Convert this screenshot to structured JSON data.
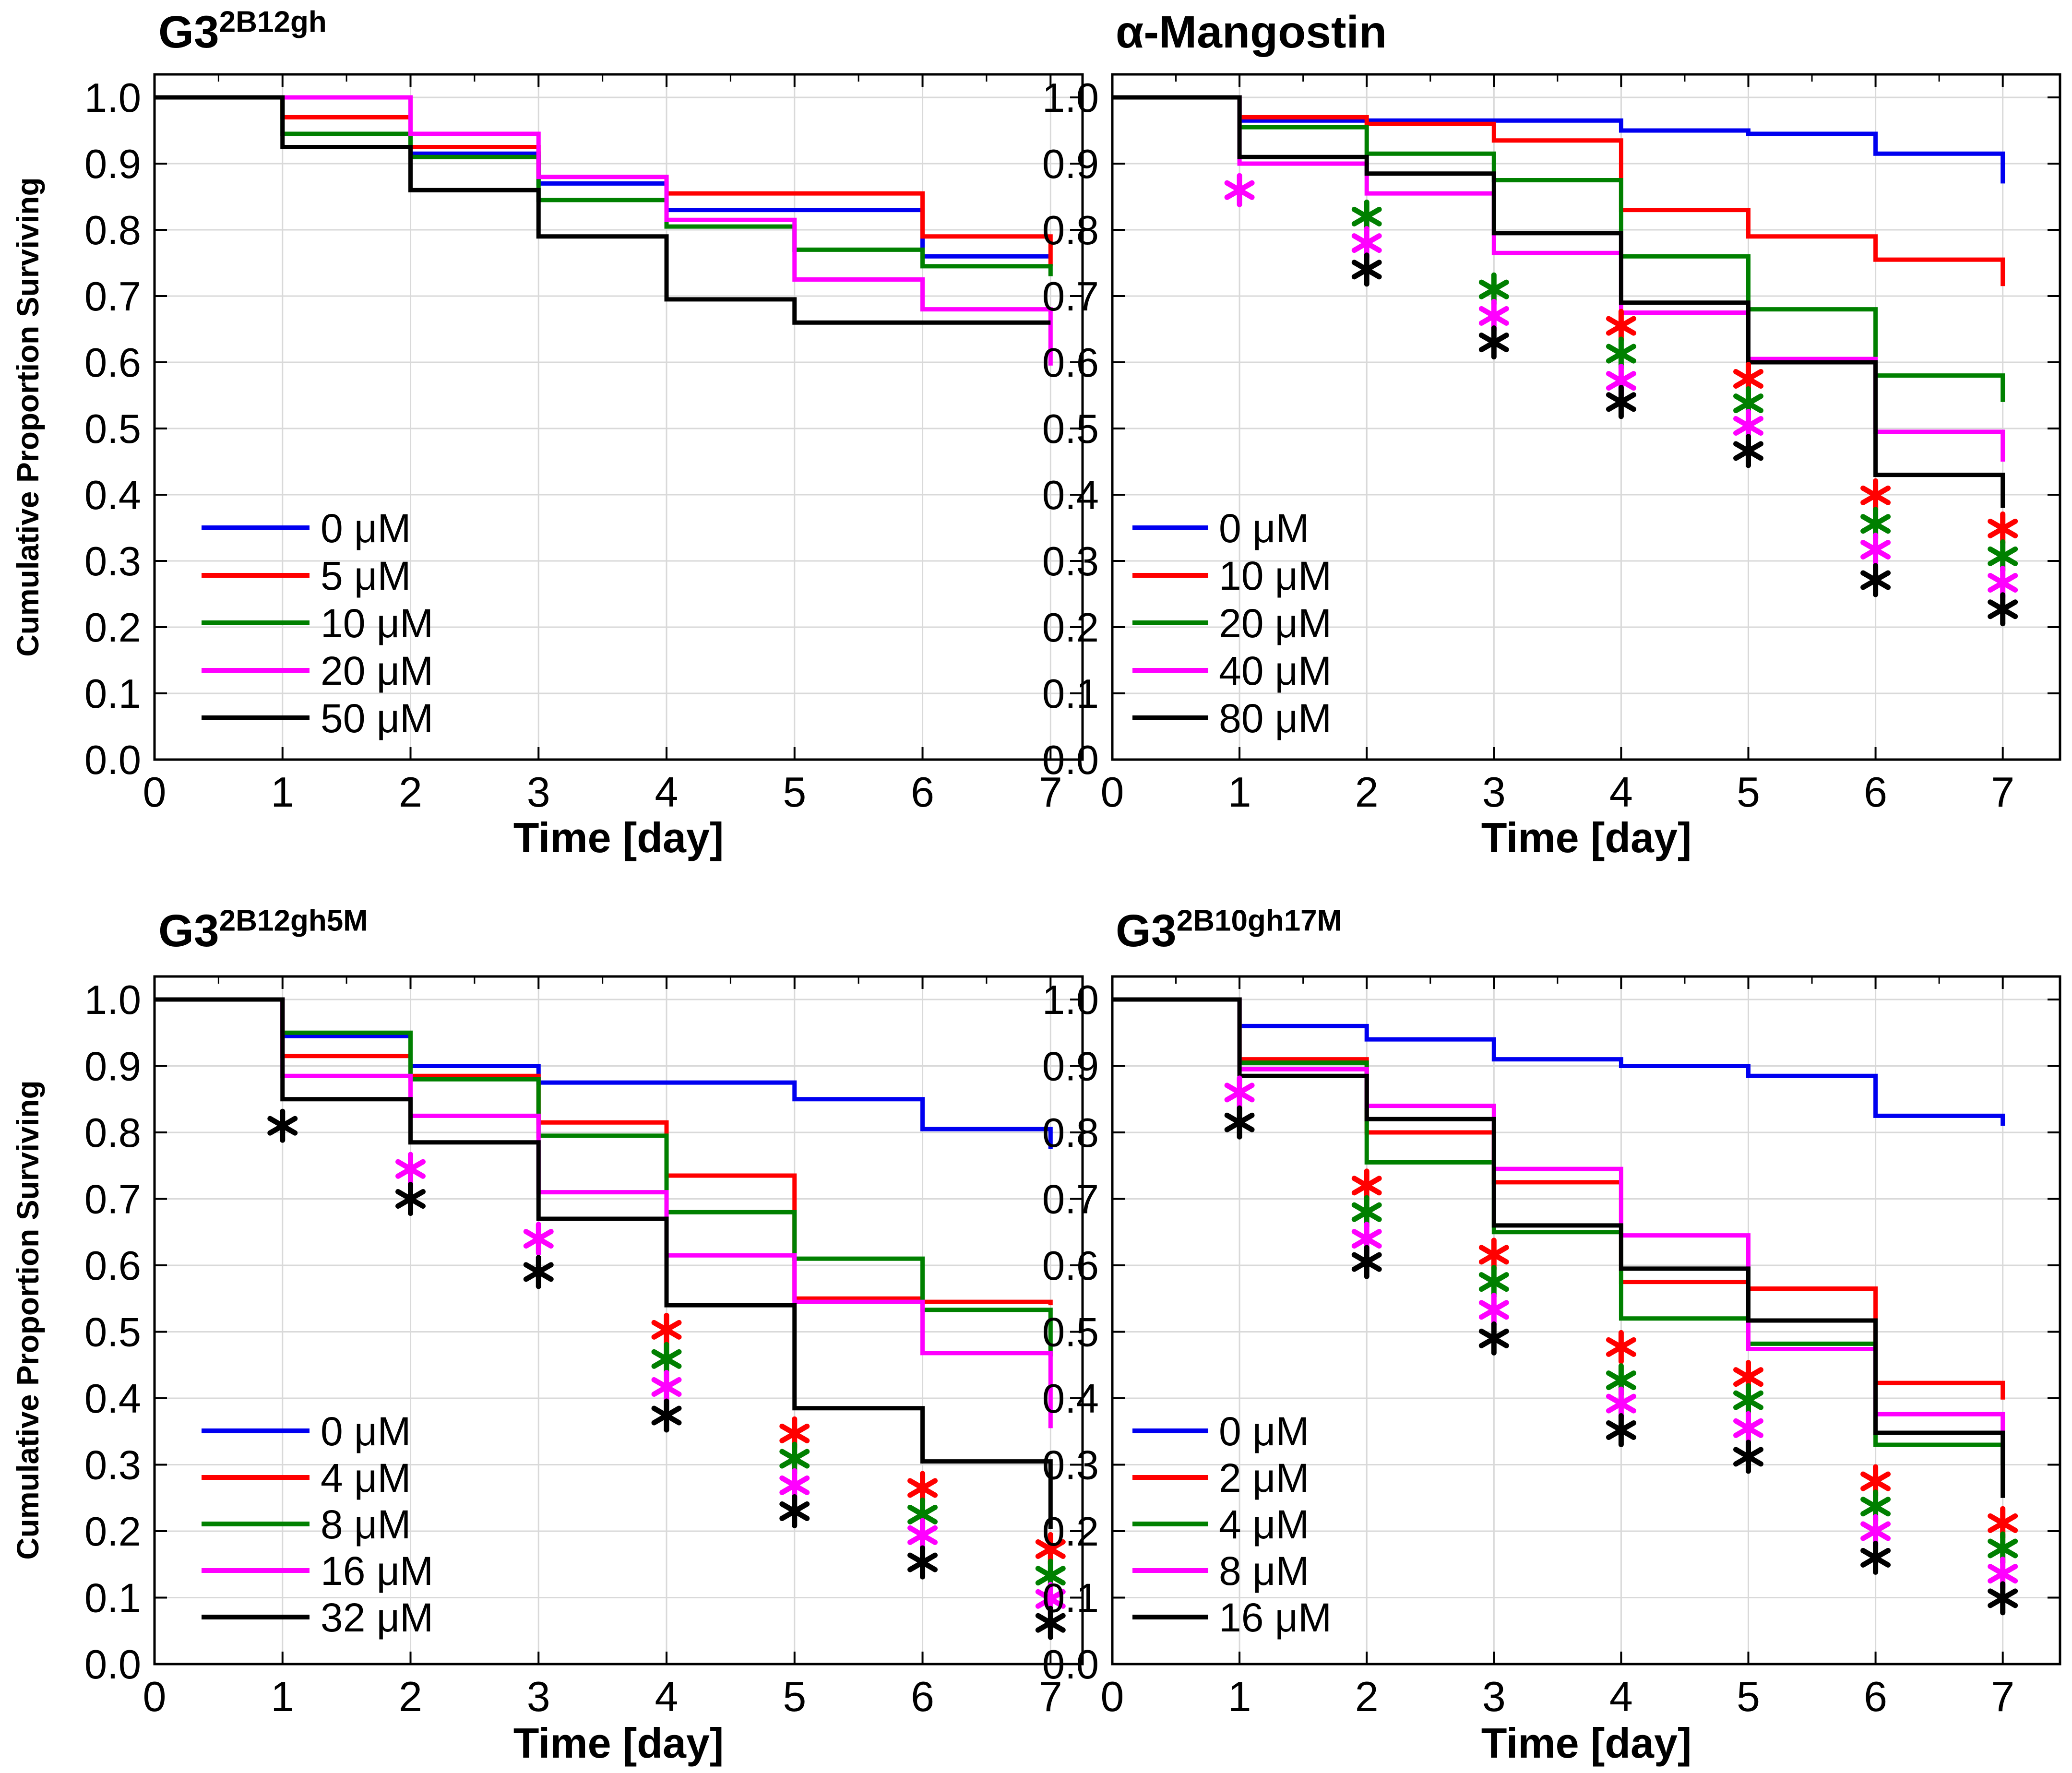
{
  "figure_type": "kaplan_meier_survival_grid",
  "chart_data": {
    "type": "step_survival",
    "grid": "2x2",
    "x_range": [
      0,
      7
    ],
    "y_range": [
      0.0,
      1.0
    ],
    "grid_on": true,
    "panels": [
      {
        "id": "top-left",
        "title": {
          "base": "G3",
          "sup": "2B12gh"
        },
        "xlabel": "Time [day]",
        "ylabel": "Cumulative Proportion Surviving",
        "xticks": [
          "0",
          "1",
          "2",
          "3",
          "4",
          "5",
          "6",
          "7"
        ],
        "yticks": [
          "1.0",
          "0.9",
          "0.8",
          "0.7",
          "0.6",
          "0.5",
          "0.4",
          "0.3",
          "0.2",
          "0.1",
          "0.0"
        ],
        "legend_position": "lower-left",
        "series": [
          {
            "label": "0 μM",
            "color": "blue",
            "steps": [
              1.0,
              1.0,
              0.915,
              0.87,
              0.83,
              0.83,
              0.76
            ],
            "final": 0.76
          },
          {
            "label": "5 μM",
            "color": "red",
            "steps": [
              1.0,
              0.97,
              0.925,
              0.88,
              0.855,
              0.855,
              0.79
            ],
            "final": 0.745
          },
          {
            "label": "10 μM",
            "color": "green",
            "steps": [
              1.0,
              0.945,
              0.91,
              0.845,
              0.805,
              0.77,
              0.745
            ],
            "final": 0.73
          },
          {
            "label": "20 μM",
            "color": "magenta",
            "steps": [
              1.0,
              1.0,
              0.945,
              0.88,
              0.815,
              0.725,
              0.68
            ],
            "final": 0.595
          },
          {
            "label": "50 μM",
            "color": "black",
            "steps": [
              1.0,
              0.925,
              0.86,
              0.79,
              0.695,
              0.66,
              0.66
            ],
            "final": 0.66
          }
        ],
        "asterisks": []
      },
      {
        "id": "top-right",
        "title": {
          "base": "α-Mangostin",
          "sup": ""
        },
        "xlabel": "Time [day]",
        "ylabel": "",
        "xticks": [
          "0",
          "1",
          "2",
          "3",
          "4",
          "5",
          "6",
          "7"
        ],
        "yticks": [
          "1.0",
          "0.9",
          "0.8",
          "0.7",
          "0.6",
          "0.5",
          "0.4",
          "0.3",
          "0.2",
          "0.1",
          "0.0"
        ],
        "legend_position": "lower-left",
        "series": [
          {
            "label": "0 μM",
            "color": "blue",
            "steps": [
              1.0,
              0.965,
              0.965,
              0.965,
              0.95,
              0.945,
              0.915
            ],
            "final": 0.87
          },
          {
            "label": "10 μM",
            "color": "red",
            "steps": [
              1.0,
              0.97,
              0.96,
              0.935,
              0.83,
              0.79,
              0.755
            ],
            "final": 0.715
          },
          {
            "label": "20 μM",
            "color": "green",
            "steps": [
              1.0,
              0.955,
              0.915,
              0.875,
              0.76,
              0.68,
              0.58
            ],
            "final": 0.54
          },
          {
            "label": "40 μM",
            "color": "magenta",
            "steps": [
              1.0,
              0.9,
              0.855,
              0.765,
              0.675,
              0.605,
              0.495
            ],
            "final": 0.45
          },
          {
            "label": "80 μM",
            "color": "black",
            "steps": [
              1.0,
              0.91,
              0.885,
              0.795,
              0.69,
              0.6,
              0.43
            ],
            "final": 0.38
          }
        ],
        "asterisks": [
          {
            "day": 1,
            "marks": [
              [
                "magenta",
                0.86
              ]
            ]
          },
          {
            "day": 2,
            "marks": [
              [
                "green",
                0.82
              ],
              [
                "magenta",
                0.78
              ],
              [
                "black",
                0.74
              ]
            ]
          },
          {
            "day": 3,
            "marks": [
              [
                "green",
                0.71
              ],
              [
                "magenta",
                0.67
              ],
              [
                "black",
                0.63
              ]
            ]
          },
          {
            "day": 4,
            "marks": [
              [
                "red",
                0.655
              ],
              [
                "green",
                0.613
              ],
              [
                "magenta",
                0.572
              ],
              [
                "black",
                0.54
              ]
            ]
          },
          {
            "day": 5,
            "marks": [
              [
                "red",
                0.575
              ],
              [
                "green",
                0.538
              ],
              [
                "magenta",
                0.504
              ],
              [
                "black",
                0.466
              ]
            ]
          },
          {
            "day": 6,
            "marks": [
              [
                "red",
                0.399
              ],
              [
                "green",
                0.356
              ],
              [
                "magenta",
                0.317
              ],
              [
                "black",
                0.271
              ]
            ]
          },
          {
            "day": 7,
            "marks": [
              [
                "red",
                0.349
              ],
              [
                "green",
                0.307
              ],
              [
                "magenta",
                0.267
              ],
              [
                "black",
                0.227
              ]
            ]
          }
        ]
      },
      {
        "id": "bottom-left",
        "title": {
          "base": "G3",
          "sup": "2B12gh5M"
        },
        "xlabel": "Time [day]",
        "ylabel": "Cumulative Proportion Surviving",
        "xticks": [
          "0",
          "1",
          "2",
          "3",
          "4",
          "5",
          "6",
          "7"
        ],
        "yticks": [
          "1.0",
          "0.9",
          "0.8",
          "0.7",
          "0.6",
          "0.5",
          "0.4",
          "0.3",
          "0.2",
          "0.1",
          "0.0"
        ],
        "legend_position": "lower-left",
        "series": [
          {
            "label": "0 μM",
            "color": "blue",
            "steps": [
              1.0,
              0.945,
              0.9,
              0.875,
              0.875,
              0.85,
              0.805
            ],
            "final": 0.775
          },
          {
            "label": "4 μM",
            "color": "red",
            "steps": [
              1.0,
              0.915,
              0.885,
              0.815,
              0.735,
              0.55,
              0.545
            ],
            "final": 0.54
          },
          {
            "label": "8 μM",
            "color": "green",
            "steps": [
              1.0,
              0.95,
              0.88,
              0.795,
              0.68,
              0.61,
              0.533
            ],
            "final": 0.463
          },
          {
            "label": "16 μM",
            "color": "magenta",
            "steps": [
              1.0,
              0.885,
              0.825,
              0.71,
              0.615,
              0.545,
              0.468
            ],
            "final": 0.355
          },
          {
            "label": "32 μM",
            "color": "black",
            "steps": [
              1.0,
              0.85,
              0.785,
              0.67,
              0.54,
              0.385,
              0.305
            ],
            "final": 0.203
          }
        ],
        "asterisks": [
          {
            "day": 1,
            "marks": [
              [
                "black",
                0.81
              ]
            ]
          },
          {
            "day": 2,
            "marks": [
              [
                "magenta",
                0.745
              ],
              [
                "black",
                0.7
              ]
            ]
          },
          {
            "day": 3,
            "marks": [
              [
                "magenta",
                0.64
              ],
              [
                "black",
                0.59
              ]
            ]
          },
          {
            "day": 4,
            "marks": [
              [
                "red",
                0.503
              ],
              [
                "green",
                0.459
              ],
              [
                "magenta",
                0.417
              ],
              [
                "black",
                0.374
              ]
            ]
          },
          {
            "day": 5,
            "marks": [
              [
                "red",
                0.347
              ],
              [
                "green",
                0.309
              ],
              [
                "magenta",
                0.269
              ],
              [
                "black",
                0.23
              ]
            ]
          },
          {
            "day": 6,
            "marks": [
              [
                "red",
                0.265
              ],
              [
                "green",
                0.225
              ],
              [
                "magenta",
                0.194
              ],
              [
                "black",
                0.153
              ]
            ]
          },
          {
            "day": 7,
            "marks": [
              [
                "red",
                0.173
              ],
              [
                "green",
                0.133
              ],
              [
                "magenta",
                0.098
              ],
              [
                "black",
                0.062
              ]
            ]
          }
        ]
      },
      {
        "id": "bottom-right",
        "title": {
          "base": "G3",
          "sup": "2B10gh17M"
        },
        "xlabel": "Time [day]",
        "ylabel": "",
        "xticks": [
          "0",
          "1",
          "2",
          "3",
          "4",
          "5",
          "6",
          "7"
        ],
        "yticks": [
          "1.0",
          "0.9",
          "0.8",
          "0.7",
          "0.6",
          "0.5",
          "0.4",
          "0.3",
          "0.2",
          "0.1",
          "0.0"
        ],
        "legend_position": "lower-left",
        "series": [
          {
            "label": "0 μM",
            "color": "blue",
            "steps": [
              1.0,
              0.96,
              0.94,
              0.91,
              0.9,
              0.885,
              0.825
            ],
            "final": 0.81
          },
          {
            "label": "2 μM",
            "color": "red",
            "steps": [
              1.0,
              0.91,
              0.8,
              0.725,
              0.575,
              0.565,
              0.423
            ],
            "final": 0.398
          },
          {
            "label": "4 μM",
            "color": "green",
            "steps": [
              1.0,
              0.905,
              0.755,
              0.65,
              0.52,
              0.482,
              0.33
            ],
            "final": 0.3
          },
          {
            "label": "8 μM",
            "color": "magenta",
            "steps": [
              1.0,
              0.895,
              0.84,
              0.745,
              0.645,
              0.474,
              0.376
            ],
            "final": 0.35
          },
          {
            "label": "16 μM",
            "color": "black",
            "steps": [
              1.0,
              0.885,
              0.82,
              0.66,
              0.595,
              0.517,
              0.348
            ],
            "final": 0.25
          }
        ],
        "asterisks": [
          {
            "day": 1,
            "marks": [
              [
                "magenta",
                0.86
              ],
              [
                "black",
                0.815
              ]
            ]
          },
          {
            "day": 2,
            "marks": [
              [
                "red",
                0.72
              ],
              [
                "green",
                0.68
              ],
              [
                "magenta",
                0.64
              ],
              [
                "black",
                0.605
              ]
            ]
          },
          {
            "day": 3,
            "marks": [
              [
                "red",
                0.616
              ],
              [
                "green",
                0.575
              ],
              [
                "magenta",
                0.533
              ],
              [
                "black",
                0.49
              ]
            ]
          },
          {
            "day": 4,
            "marks": [
              [
                "red",
                0.477
              ],
              [
                "green",
                0.427
              ],
              [
                "magenta",
                0.392
              ],
              [
                "black",
                0.352
              ]
            ]
          },
          {
            "day": 5,
            "marks": [
              [
                "red",
                0.432
              ],
              [
                "green",
                0.397
              ],
              [
                "magenta",
                0.355
              ],
              [
                "black",
                0.312
              ]
            ]
          },
          {
            "day": 6,
            "marks": [
              [
                "red",
                0.275
              ],
              [
                "green",
                0.237
              ],
              [
                "magenta",
                0.2
              ],
              [
                "black",
                0.16
              ]
            ]
          },
          {
            "day": 7,
            "marks": [
              [
                "red",
                0.212
              ],
              [
                "green",
                0.174
              ],
              [
                "magenta",
                0.136
              ],
              [
                "black",
                0.099
              ]
            ]
          }
        ]
      }
    ],
    "colors": {
      "blue": "#0000f0",
      "red": "#ff0000",
      "green": "#008000",
      "magenta": "#ff00ff",
      "black": "#000000",
      "gridline": "#d9d9d9",
      "frame": "#000000"
    }
  }
}
